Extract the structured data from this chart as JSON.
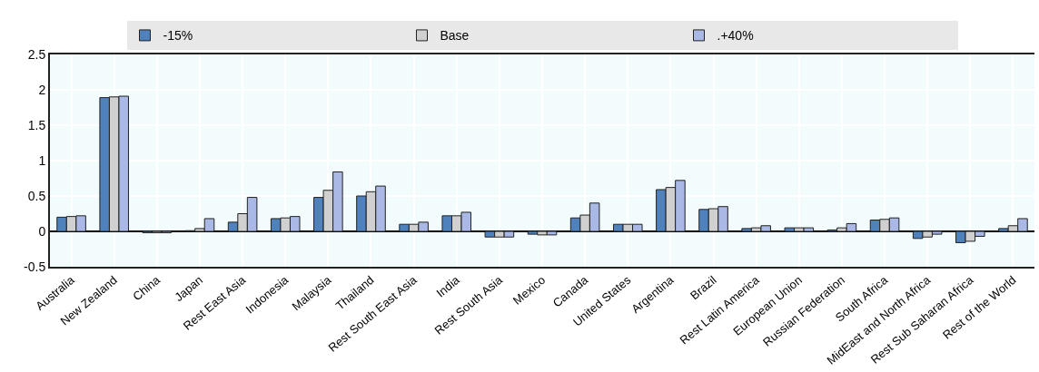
{
  "chart_data": {
    "type": "bar",
    "categories": [
      "Australia",
      "New Zealand",
      "China",
      "Japan",
      "Rest East Asia",
      "Indonesia",
      "Malaysia",
      "Thailand",
      "Rest South East Asia",
      "India",
      "Rest South Asia",
      "Mexico",
      "Canada",
      "United States",
      "Argentina",
      "Brazil",
      "Rest Latin America",
      "European Union",
      "Russian Federation",
      "South Africa",
      "MidEast and North Africa",
      "Rest Sub Saharan Africa",
      "Rest of the World"
    ],
    "series": [
      {
        "name": "-15%",
        "color": "#4f81bd",
        "values": [
          0.2,
          1.89,
          -0.02,
          0.01,
          0.13,
          0.18,
          0.48,
          0.5,
          0.1,
          0.22,
          -0.08,
          -0.04,
          0.19,
          0.1,
          0.59,
          0.31,
          0.04,
          0.05,
          0.02,
          0.16,
          -0.1,
          -0.16,
          0.04
        ]
      },
      {
        "name": "Base",
        "color": "#d0d0d0",
        "values": [
          0.21,
          1.9,
          -0.02,
          0.04,
          0.25,
          0.19,
          0.58,
          0.56,
          0.1,
          0.22,
          -0.08,
          -0.05,
          0.23,
          0.1,
          0.62,
          0.32,
          0.05,
          0.05,
          0.05,
          0.17,
          -0.08,
          -0.14,
          0.08
        ]
      },
      {
        "name": ".+40%",
        "color": "#a9b8e4",
        "values": [
          0.22,
          1.91,
          -0.02,
          0.18,
          0.48,
          0.21,
          0.84,
          0.64,
          0.13,
          0.27,
          -0.08,
          -0.05,
          0.4,
          0.1,
          0.72,
          0.35,
          0.08,
          0.05,
          0.11,
          0.19,
          -0.04,
          -0.07,
          0.18
        ]
      }
    ],
    "ylim": [
      -0.5,
      2.5
    ],
    "yticks": [
      -0.5,
      0,
      0.5,
      1,
      1.5,
      2,
      2.5
    ],
    "grid": true,
    "legend": "top"
  }
}
